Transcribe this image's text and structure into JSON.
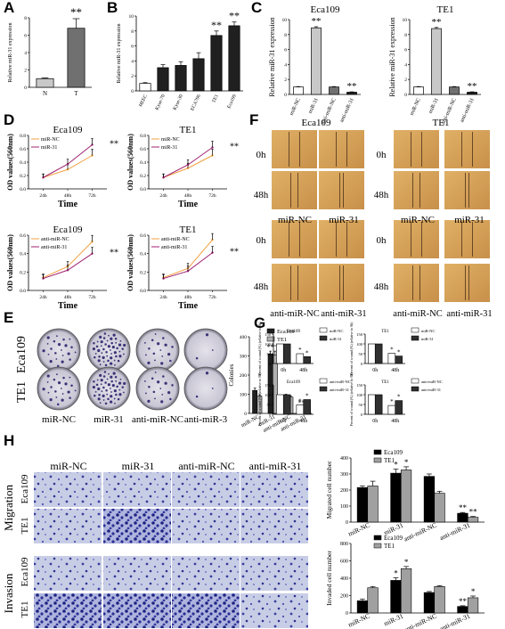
{
  "panel_letters": [
    "A",
    "B",
    "C",
    "D",
    "E",
    "F",
    "G",
    "H"
  ],
  "panel_a": {
    "ylabel": "Relative miR-31 expression",
    "sig": "**",
    "chart_data": {
      "type": "bar",
      "categories": [
        "N",
        "T"
      ],
      "values": [
        1,
        6.8
      ],
      "errors": [
        0.1,
        1.1
      ],
      "ylim": [
        0,
        8
      ],
      "yticks": [
        "0",
        "2",
        "4",
        "6",
        "8"
      ],
      "colors": [
        "#c8c8c8",
        "#707070"
      ]
    }
  },
  "panel_b": {
    "ylabel": "Relative miR-31 expression",
    "sig": [
      "**",
      "**"
    ],
    "chart_data": {
      "type": "bar",
      "categories": [
        "HEEC",
        "Kyse-70",
        "Kyse-30",
        "ECA706",
        "TE1",
        "Eca109"
      ],
      "values": [
        1,
        3.1,
        3.4,
        4.3,
        7.4,
        8.7
      ],
      "errors": [
        0.1,
        0.4,
        0.5,
        0.8,
        0.6,
        0.5
      ],
      "ylim": [
        0,
        10
      ],
      "yticks": [
        "0",
        "2",
        "4",
        "6",
        "8",
        "10"
      ]
    }
  },
  "panel_c": {
    "charts": [
      {
        "title": "Eca109",
        "ylabel": "Relative miR-31 expression",
        "sig": [
          "**",
          "**"
        ],
        "chart_data": {
          "type": "bar",
          "categories": [
            "miR-NC",
            "miR-31",
            "anti-miR-NC",
            "anti-miR-31"
          ],
          "values": [
            1,
            8.9,
            1,
            0.3
          ],
          "errors": [
            0.05,
            0.15,
            0.05,
            0.05
          ],
          "ylim": [
            0,
            10
          ],
          "yticks": [
            "0",
            "2",
            "4",
            "6",
            "8",
            "10"
          ],
          "colors": [
            "#ffffff",
            "#c8c8c8",
            "#707070",
            "#202020"
          ]
        }
      },
      {
        "title": "TE1",
        "ylabel": "Relative miR-31 expression",
        "sig": [
          "**",
          "**"
        ],
        "chart_data": {
          "type": "bar",
          "categories": [
            "miR-NC",
            "miR-31",
            "anti-miR-NC",
            "anti-miR-31"
          ],
          "values": [
            1,
            8.8,
            1,
            0.3
          ],
          "errors": [
            0.05,
            0.15,
            0.05,
            0.05
          ],
          "ylim": [
            0,
            10
          ],
          "yticks": [
            "0",
            "2",
            "4",
            "6",
            "8",
            "10"
          ],
          "colors": [
            "#ffffff",
            "#c8c8c8",
            "#707070",
            "#202020"
          ]
        }
      }
    ]
  },
  "panel_d": {
    "ylabel": "OD values(560nm)",
    "xlabel": "Time",
    "sig": "**",
    "chart_data": [
      {
        "type": "line",
        "title": "Eca109",
        "x": [
          "24h",
          "48h",
          "72h"
        ],
        "series": [
          {
            "name": "miR-NC",
            "values": [
              0.17,
              0.29,
              0.5
            ],
            "color": "#f0a040"
          },
          {
            "name": "miR-31",
            "values": [
              0.17,
              0.37,
              0.66
            ],
            "color": "#a02070"
          }
        ],
        "ylim": [
          0,
          0.8
        ],
        "yticks": [
          "0.0",
          "0.2",
          "0.4",
          "0.6",
          "0.8"
        ]
      },
      {
        "type": "line",
        "title": "TE1",
        "x": [
          "24h",
          "48h",
          "72h"
        ],
        "series": [
          {
            "name": "miR-NC",
            "values": [
              0.17,
              0.31,
              0.5
            ],
            "color": "#f0a040"
          },
          {
            "name": "miR-31",
            "values": [
              0.17,
              0.36,
              0.62
            ],
            "color": "#a02070"
          }
        ],
        "ylim": [
          0,
          0.8
        ],
        "yticks": [
          "0.0",
          "0.2",
          "0.4",
          "0.6",
          "0.8"
        ]
      },
      {
        "type": "line",
        "title": "Eca109",
        "x": [
          "24h",
          "48h",
          "72h"
        ],
        "series": [
          {
            "name": "anti-miR-NC",
            "values": [
              0.14,
              0.26,
              0.53
            ],
            "color": "#f0a040"
          },
          {
            "name": "anti-miR-31",
            "values": [
              0.13,
              0.22,
              0.4
            ],
            "color": "#a02070"
          }
        ],
        "ylim": [
          0,
          0.6
        ],
        "yticks": [
          "0.0",
          "0.2",
          "0.4",
          "0.6"
        ]
      },
      {
        "type": "line",
        "title": "TE1",
        "x": [
          "24h",
          "48h",
          "72h"
        ],
        "series": [
          {
            "name": "anti-miR-NC",
            "values": [
              0.14,
              0.24,
              0.55
            ],
            "color": "#f0a040"
          },
          {
            "name": "anti-miR-31",
            "values": [
              0.13,
              0.21,
              0.41
            ],
            "color": "#a02070"
          }
        ],
        "ylim": [
          0,
          0.6
        ],
        "yticks": [
          "0.0",
          "0.2",
          "0.4",
          "0.6"
        ]
      }
    ]
  },
  "panel_f": {
    "headers": [
      "Eca109",
      "TE1"
    ],
    "time_labels": [
      "0h",
      "48h",
      "0h",
      "48h"
    ],
    "col_labels_top": [
      "miR-NC",
      "miR-31",
      "miR-NC",
      "miR-31"
    ],
    "col_labels_bottom": [
      "anti-miR-NC",
      "anti-miR-31",
      "anti-miR-NC",
      "anti-miR-31"
    ]
  },
  "panel_e": {
    "row_labels": [
      "Eca109",
      "TE1"
    ],
    "col_labels": [
      "miR-NC",
      "miR-31",
      "anti-miR-NC",
      "anti-miR-3"
    ],
    "ylabel": "Colonies",
    "sig": [
      "****",
      "****"
    ],
    "chart_data": {
      "type": "bar",
      "categories": [
        "miR-NC",
        "miR-31",
        "anti-miR-NC",
        "anti-miR-31"
      ],
      "series": [
        {
          "name": "Eca109",
          "values": [
            120,
            310,
            95,
            30
          ],
          "errors": [
            12,
            15,
            5,
            4
          ],
          "color": "#202020"
        },
        {
          "name": "TE1",
          "values": [
            90,
            305,
            85,
            20
          ],
          "errors": [
            8,
            20,
            5,
            3
          ],
          "color": "#b0b0b0"
        }
      ],
      "ylim": [
        0,
        400
      ],
      "yticks": [
        "0",
        "100",
        "200",
        "300",
        "400"
      ]
    }
  },
  "panel_g": {
    "ylabel": "Percent of wound (%) (relative to 0h)",
    "sig": "*",
    "chart_data": [
      {
        "type": "bar",
        "title": "Eca109",
        "categories": [
          "0h",
          "48h"
        ],
        "series": [
          {
            "name": "miR-NC",
            "values": [
              100,
              50
            ],
            "color": "#ffffff"
          },
          {
            "name": "miR-31",
            "values": [
              100,
              35
            ],
            "color": "#303030"
          }
        ],
        "ylim": [
          0,
          150
        ],
        "yticks": [
          "0",
          "50",
          "100",
          "150"
        ]
      },
      {
        "type": "bar",
        "title": "TE1",
        "categories": [
          "0h",
          "48h"
        ],
        "series": [
          {
            "name": "miR-NC",
            "values": [
              100,
              52
            ],
            "color": "#ffffff"
          },
          {
            "name": "miR-31",
            "values": [
              100,
              38
            ],
            "color": "#303030"
          }
        ],
        "ylim": [
          0,
          150
        ],
        "yticks": [
          "0",
          "50",
          "100",
          "150"
        ]
      },
      {
        "type": "bar",
        "title": "Eca109",
        "categories": [
          "0h",
          "48h"
        ],
        "series": [
          {
            "name": "anti-miR-NC",
            "values": [
              100,
              48
            ],
            "color": "#ffffff"
          },
          {
            "name": "anti-miR-31",
            "values": [
              100,
              75
            ],
            "color": "#303030"
          }
        ],
        "ylim": [
          0,
          150
        ],
        "yticks": [
          "0",
          "50",
          "100",
          "150"
        ]
      },
      {
        "type": "bar",
        "title": "TE1",
        "categories": [
          "0h",
          "48h"
        ],
        "series": [
          {
            "name": "anti-miR-NC",
            "values": [
              100,
              45
            ],
            "color": "#ffffff"
          },
          {
            "name": "anti-miR-31",
            "values": [
              100,
              70
            ],
            "color": "#303030"
          }
        ],
        "ylim": [
          0,
          150
        ],
        "yticks": [
          "0",
          "50",
          "100",
          "150"
        ]
      }
    ]
  },
  "panel_h": {
    "col_labels": [
      "miR-NC",
      "miR-31",
      "anti-miR-NC",
      "anti-miR-31"
    ],
    "group_labels": [
      "Migration",
      "Invasion"
    ],
    "row_labels": [
      "Eca109",
      "TE1",
      "Eca109",
      "TE1"
    ],
    "charts": [
      {
        "ylabel": "Migrated cell number",
        "chart_data": {
          "type": "bar",
          "categories": [
            "miR-NC",
            "miR-31",
            "anti-miR-NC",
            "anti-miR-31"
          ],
          "series": [
            {
              "name": "Eca109",
              "values": [
                215,
                305,
                285,
                55
              ],
              "errors": [
                10,
                25,
                15,
                5
              ],
              "color": "#000000"
            },
            {
              "name": "TE1",
              "values": [
                225,
                325,
                180,
                30
              ],
              "errors": [
                30,
                20,
                12,
                5
              ],
              "color": "#a0a0a0"
            }
          ],
          "ylim": [
            0,
            400
          ],
          "yticks": [
            "0",
            "100",
            "200",
            "300",
            "400"
          ]
        },
        "sig": [
          "*",
          "*",
          "**",
          "**"
        ]
      },
      {
        "ylabel": "Invaded cell number",
        "chart_data": {
          "type": "bar",
          "categories": [
            "miR-NC",
            "miR-31",
            "anti-miR-NC",
            "anti-miR-31"
          ],
          "series": [
            {
              "name": "Eca109",
              "values": [
                140,
                375,
                235,
                75
              ],
              "errors": [
                20,
                30,
                12,
                8
              ],
              "color": "#000000"
            },
            {
              "name": "TE1",
              "values": [
                290,
                510,
                305,
                175
              ],
              "errors": [
                15,
                25,
                10,
                20
              ],
              "color": "#a0a0a0"
            }
          ],
          "ylim": [
            0,
            800
          ],
          "yticks": [
            "0",
            "200",
            "400",
            "600",
            "800"
          ]
        },
        "sig": [
          "*",
          "*",
          "**",
          "*"
        ]
      }
    ]
  }
}
